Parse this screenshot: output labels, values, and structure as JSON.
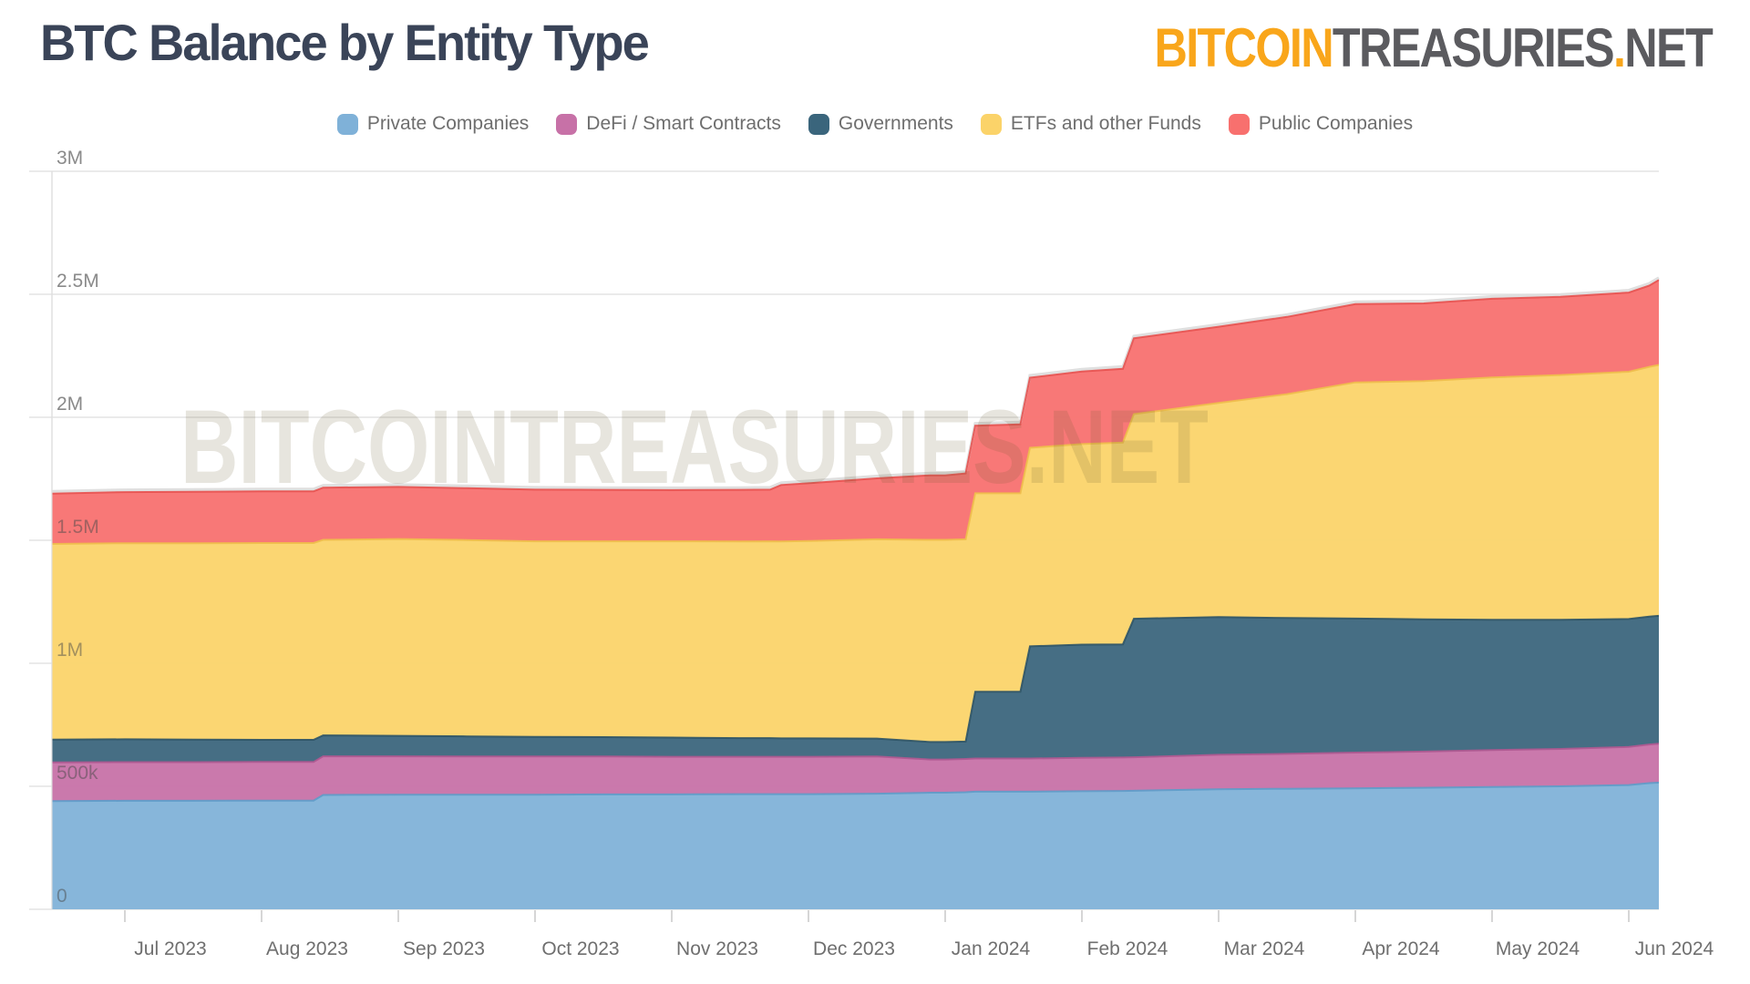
{
  "header": {
    "title": "BTC Balance by Entity Type",
    "logo": {
      "bitcoin": "BITCOIN",
      "treasuries": "TREASURIES",
      "dot": ".",
      "net": "NET"
    }
  },
  "watermark": "BITCOINTREASURIES.NET",
  "chart_data": {
    "type": "area",
    "stacked": true,
    "title": "BTC Balance by Entity Type",
    "values_unit": "thousand BTC",
    "x_unit": "months, t=0 at Jul 2023 tick (range mid-Jun 2023 to early Jun 2024)",
    "ylim": [
      0,
      3000000
    ],
    "grid": true,
    "legend_position": "top-center",
    "y_ticks": [
      "0",
      "500k",
      "1M",
      "1.5M",
      "2M",
      "2.5M",
      "3M"
    ],
    "x_ticks": [
      "Jul 2023",
      "Aug 2023",
      "Sep 2023",
      "Oct 2023",
      "Nov 2023",
      "Dec 2023",
      "Jan 2024",
      "Feb 2024",
      "Mar 2024",
      "Apr 2024",
      "May 2024",
      "Jun 2024"
    ],
    "t": [
      -0.53,
      0,
      0.5,
      1.0,
      1.38,
      1.45,
      2.0,
      2.5,
      3.0,
      3.5,
      4.0,
      4.5,
      4.72,
      4.8,
      5.0,
      5.5,
      5.89,
      6.0,
      6.15,
      6.22,
      6.55,
      6.62,
      7.0,
      7.3,
      7.38,
      8.0,
      8.5,
      9.0,
      9.5,
      10.0,
      10.5,
      11.0,
      11.15,
      11.22
    ],
    "series": [
      {
        "name": "Private Companies",
        "color": "#7FB1D8",
        "edge": "#5E9BC8",
        "values": [
          440,
          441,
          441,
          442,
          442,
          465,
          466,
          466,
          466,
          467,
          467,
          468,
          468,
          468,
          468,
          470,
          474,
          474,
          476,
          478,
          478,
          478,
          480,
          481,
          482,
          488,
          490,
          492,
          494,
          497,
          500,
          505,
          513,
          515
        ]
      },
      {
        "name": "DeFi / Smart Contracts",
        "color": "#C771A7",
        "edge": "#AE5890",
        "values": [
          157,
          157,
          157,
          157,
          157,
          157,
          156,
          155,
          155,
          154,
          153,
          152,
          152,
          152,
          152,
          151,
          135,
          135,
          135,
          135,
          135,
          135,
          136,
          136,
          136,
          140,
          142,
          145,
          147,
          150,
          152,
          155,
          157,
          158
        ]
      },
      {
        "name": "Governments",
        "color": "#3A657C",
        "edge": "#2C5366",
        "values": [
          93,
          93,
          92,
          90,
          90,
          85,
          83,
          82,
          80,
          79,
          78,
          76,
          76,
          75,
          75,
          73,
          71,
          71,
          71,
          271,
          271,
          456,
          460,
          460,
          563,
          560,
          552,
          545,
          538,
          530,
          525,
          520,
          520,
          520
        ]
      },
      {
        "name": "ETFs and other Funds",
        "color": "#FBD369",
        "edge": "#EEBE4A",
        "values": [
          795,
          797,
          798,
          800,
          800,
          795,
          800,
          798,
          795,
          796,
          798,
          799,
          800,
          800,
          802,
          810,
          822,
          822,
          822,
          807,
          807,
          807,
          815,
          820,
          832,
          870,
          910,
          960,
          968,
          985,
          995,
          1005,
          1015,
          1020
        ]
      },
      {
        "name": "Public Companies",
        "color": "#F8706E",
        "edge": "#E6504E",
        "values": [
          205,
          208,
          209,
          210,
          210,
          212,
          212,
          211,
          210,
          209,
          208,
          210,
          210,
          230,
          235,
          248,
          262,
          262,
          268,
          275,
          280,
          285,
          295,
          300,
          308,
          310,
          314,
          318,
          316,
          320,
          318,
          322,
          330,
          345
        ]
      }
    ],
    "colors": {
      "title": "#3A4458",
      "logo_orange": "#F9A61B",
      "logo_gray": "#5B5B5F",
      "grid": "#E3E3E3",
      "axis_label": "#6F6F6F",
      "watermark": "#6B5D33"
    }
  }
}
